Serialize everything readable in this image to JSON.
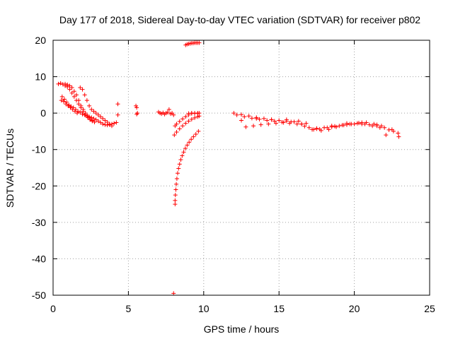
{
  "chart_data": {
    "type": "scatter",
    "title": "Day 177 of 2018, Sidereal Day-to-day VTEC variation (SDTVAR) for receiver p802",
    "xlabel": "GPS time / hours",
    "ylabel": "SDTVAR / TECUs",
    "xlim": [
      0,
      25
    ],
    "ylim": [
      -50,
      20
    ],
    "xticks": [
      0,
      5,
      10,
      15,
      20,
      25
    ],
    "yticks": [
      -50,
      -40,
      -30,
      -20,
      -10,
      0,
      10,
      20
    ],
    "grid": true,
    "marker": "+",
    "marker_color": "#ff0000",
    "series": [
      {
        "name": "p802",
        "x": [
          0.35,
          0.5,
          0.65,
          0.8,
          0.95,
          1.1,
          1.25,
          1.4,
          1.55,
          1.7,
          1.85,
          2.0,
          2.15,
          2.3,
          2.45,
          2.6,
          0.6,
          0.75,
          0.9,
          1.05,
          1.2,
          1.35,
          1.5,
          1.65,
          1.8,
          1.95,
          2.1,
          2.25,
          2.4,
          2.55,
          2.7,
          2.85,
          3.0,
          3.15,
          3.3,
          3.45,
          3.6,
          3.75,
          3.9,
          4.05,
          4.2,
          0.8,
          0.95,
          1.1,
          1.25,
          1.4,
          1.55,
          1.7,
          1.85,
          2.0,
          2.15,
          2.3,
          2.45,
          2.6,
          2.75,
          0.55,
          0.7,
          0.85,
          1.0,
          1.15,
          1.3,
          1.45,
          1.6,
          1.8,
          1.95,
          2.1,
          2.25,
          2.4,
          2.55,
          2.7,
          2.85,
          3.0,
          3.15,
          3.3,
          3.45,
          3.6,
          3.75,
          3.9,
          4.3,
          4.3,
          5.5,
          5.55,
          5.6,
          5.55,
          7.0,
          7.1,
          7.2,
          7.3,
          7.4,
          7.5,
          7.6,
          7.7,
          7.8,
          7.9,
          8.0,
          8.1,
          8.2,
          8.4,
          8.6,
          8.8,
          9.0,
          9.2,
          9.4,
          9.6,
          8.05,
          8.2,
          8.4,
          8.6,
          8.8,
          9.0,
          9.2,
          9.4,
          9.6,
          9.7,
          9.0,
          9.2,
          9.4,
          9.6,
          9.7,
          8.8,
          8.9,
          9.0,
          9.1,
          9.2,
          9.3,
          9.4,
          9.5,
          9.6,
          9.7,
          8.1,
          8.1,
          8.12,
          8.15,
          8.18,
          8.22,
          8.27,
          8.33,
          8.4,
          8.48,
          8.57,
          8.67,
          8.78,
          8.9,
          9.03,
          9.17,
          9.32,
          9.48,
          9.65,
          8.0,
          12.0,
          12.5,
          13.0,
          13.5,
          14.0,
          14.5,
          15.0,
          15.5,
          16.0,
          16.5,
          17.0,
          17.5,
          18.0,
          18.5,
          19.0,
          19.5,
          20.0,
          20.5,
          21.0,
          21.5,
          22.0,
          22.5,
          22.9,
          12.2,
          12.7,
          13.2,
          13.7,
          14.2,
          14.7,
          15.2,
          15.7,
          16.2,
          16.7,
          17.2,
          17.7,
          18.2,
          18.7,
          19.2,
          19.7,
          20.2,
          20.7,
          21.2,
          21.7,
          12.8,
          13.3,
          13.8,
          14.3,
          14.8,
          15.3,
          15.8,
          16.3,
          16.8,
          17.3,
          17.8,
          18.3,
          18.8,
          19.3,
          19.8,
          20.3,
          20.8,
          21.3,
          21.8,
          22.3,
          12.5,
          13.5,
          14.5,
          15.5,
          16.5,
          17.5,
          18.5,
          19.5,
          20.5,
          21.5,
          22.1,
          22.6,
          22.95
        ],
        "y": [
          8.0,
          8.2,
          7.9,
          8.0,
          7.8,
          7.5,
          7.0,
          6.0,
          5.0,
          3.5,
          2.0,
          1.0,
          0.0,
          -0.8,
          -1.5,
          -2.0,
          4.5,
          3.8,
          3.0,
          2.2,
          1.8,
          1.5,
          1.0,
          0.5,
          0.2,
          -0.3,
          -0.5,
          -0.8,
          -1.0,
          -1.2,
          -1.5,
          -1.8,
          -2.2,
          -2.6,
          -3.0,
          -3.2,
          -3.3,
          -3.2,
          -3.0,
          -2.8,
          -2.6,
          7.5,
          7.2,
          6.5,
          5.5,
          4.5,
          3.5,
          2.5,
          1.5,
          0.5,
          -0.5,
          -1.2,
          -1.8,
          -2.2,
          -2.5,
          3.5,
          3.2,
          2.5,
          2.0,
          1.5,
          1.0,
          0.5,
          0.0,
          7.0,
          6.5,
          5.0,
          3.5,
          2.0,
          1.0,
          0.5,
          0.0,
          -0.5,
          -1.0,
          -1.5,
          -2.0,
          -2.5,
          -3.0,
          -3.5,
          2.5,
          -0.5,
          2.0,
          1.5,
          0.0,
          -0.3,
          0.3,
          0.0,
          -0.2,
          0.1,
          -0.3,
          0.0,
          0.2,
          1.0,
          -0.2,
          0.0,
          -0.5,
          -3.5,
          -3.0,
          -2.3,
          -1.6,
          -1.0,
          -0.5,
          -0.1,
          0.0,
          0.0,
          -6.0,
          -5.2,
          -4.3,
          -3.5,
          -2.8,
          -2.2,
          -1.7,
          -1.3,
          -1.0,
          -0.8,
          -0.1,
          0.0,
          -0.1,
          -0.1,
          0.0,
          18.7,
          18.9,
          19.0,
          19.1,
          19.2,
          19.2,
          19.3,
          19.3,
          19.3,
          19.3,
          -25.0,
          -24.0,
          -22.5,
          -21.0,
          -19.5,
          -18.0,
          -16.5,
          -15.2,
          -14.0,
          -12.8,
          -11.7,
          -10.7,
          -9.7,
          -8.8,
          -8.0,
          -7.2,
          -6.5,
          -5.8,
          -5.0,
          -49.5,
          0.0,
          -0.4,
          -0.8,
          -1.2,
          -1.5,
          -1.8,
          -2.0,
          -2.2,
          -2.4,
          -3.0,
          -4.0,
          -4.2,
          -4.0,
          -3.8,
          -3.5,
          -3.2,
          -3.0,
          -3.0,
          -3.2,
          -3.5,
          -4.0,
          -4.5,
          -5.5,
          -0.5,
          -1.0,
          -1.4,
          -1.7,
          -2.0,
          -2.2,
          -2.5,
          -2.8,
          -3.0,
          -3.6,
          -4.5,
          -4.4,
          -4.0,
          -3.6,
          -3.3,
          -3.0,
          -2.8,
          -3.0,
          -3.5,
          -4.0,
          -3.8,
          -3.5,
          -3.2,
          -3.0,
          -2.8,
          -2.6,
          -2.4,
          -2.2,
          -2.8,
          -4.5,
          -4.8,
          -4.5,
          -3.8,
          -3.3,
          -3.0,
          -2.7,
          -2.6,
          -3.0,
          -3.5,
          -4.6,
          -2.0,
          -1.5,
          -1.8,
          -1.8,
          -3.0,
          -4.3,
          -3.5,
          -2.8,
          -2.6,
          -3.2,
          -6.0,
          -5.0,
          -6.5
        ]
      }
    ]
  }
}
